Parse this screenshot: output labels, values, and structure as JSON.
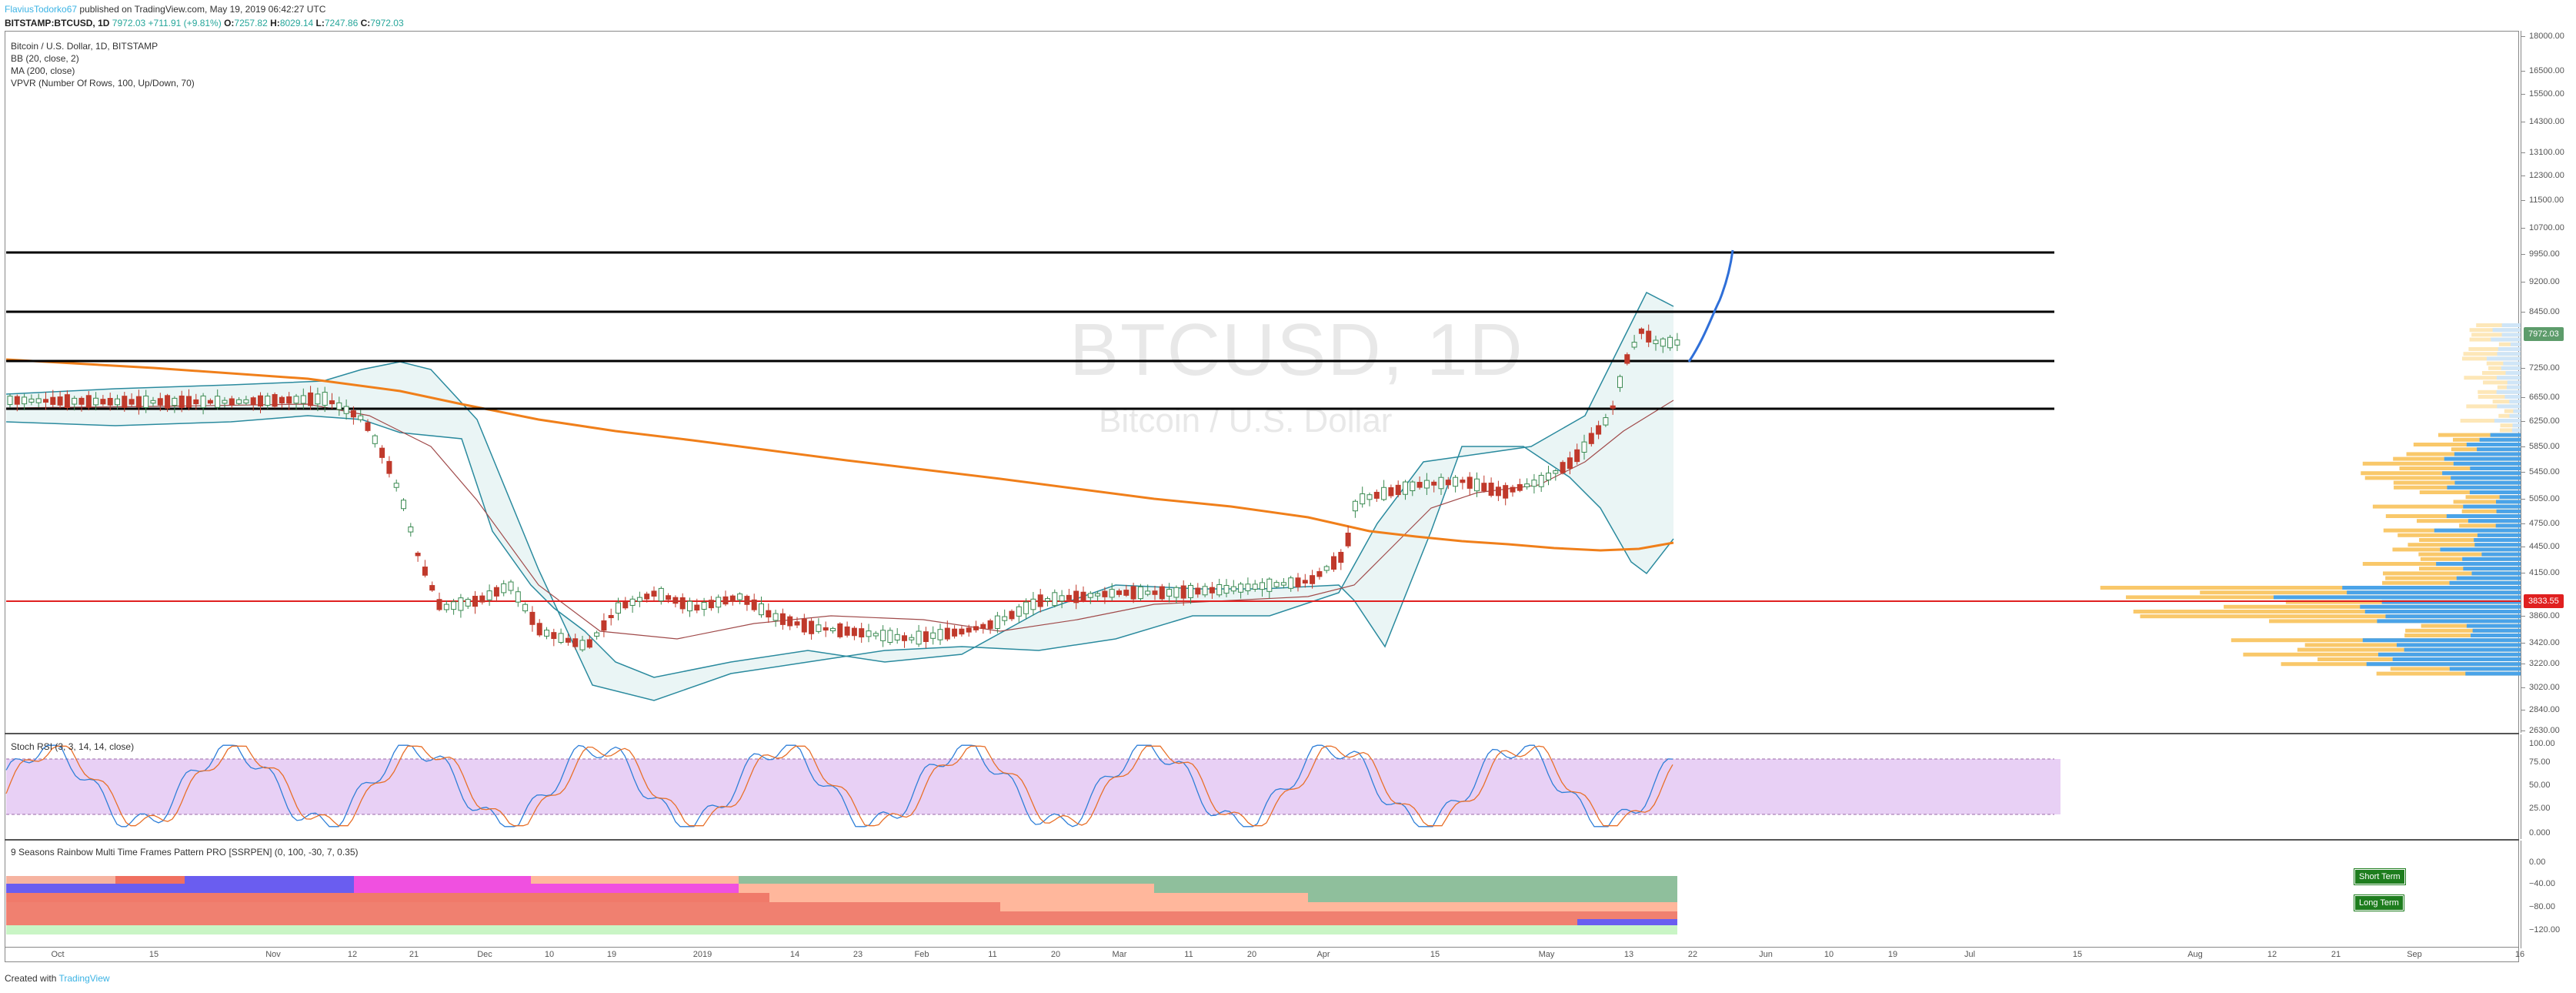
{
  "header": {
    "author": "FlaviusTodorko67",
    "published": "published on TradingView.com, May 19, 2019 06:42:27 UTC",
    "symbol": "BITSTAMP:BTCUSD, 1D",
    "last": "7972.03",
    "change": "+711.91 (+9.81%)",
    "o_label": "O:",
    "o": "7257.82",
    "h_label": "H:",
    "h": "8029.14",
    "l_label": "L:",
    "l": "7247.86",
    "c_label": "C:",
    "c": "7972.03"
  },
  "main_legend": {
    "title": "Bitcoin / U.S. Dollar, 1D, BITSTAMP",
    "bb": "BB (20, close, 2)",
    "ma": "MA (200, close)",
    "vpvr": "VPVR (Number Of Rows, 100, Up/Down, 70)"
  },
  "watermark": {
    "symbol": "BTCUSD, 1D",
    "name": "Bitcoin / U.S. Dollar"
  },
  "price_axis": {
    "labels": [
      "18000.00",
      "16500.00",
      "15500.00",
      "14300.00",
      "13100.00",
      "12300.00",
      "11500.00",
      "10700.00",
      "9950.00",
      "9200.00",
      "8450.00",
      "7250.00",
      "6650.00",
      "6250.00",
      "5850.00",
      "5450.00",
      "5050.00",
      "4750.00",
      "4450.00",
      "4150.00",
      "3860.00",
      "3420.00",
      "3220.00",
      "3020.00",
      "2840.00",
      "2630.00"
    ]
  },
  "price_badges": {
    "last": "7972.03",
    "red_level": "3833.55",
    "last_color": "#5d9c6b",
    "red_color": "#e02020"
  },
  "rsi": {
    "legend": "Stoch RSI (3, 3, 14, 14, close)",
    "axis": [
      "100.00",
      "75.00",
      "50.00",
      "25.00",
      "0.000"
    ]
  },
  "rainbow": {
    "legend": "9 Seasons Rainbow Multi Time Frames Pattern PRO [SSRPEN] (0, 100, -30, 7, 0.35)",
    "axis": [
      "0.00",
      "−40.00",
      "−80.00",
      "−120.00"
    ],
    "short_term": "Short Term",
    "long_term": "Long Term"
  },
  "time_axis": [
    "Oct",
    "15",
    "Nov",
    "12",
    "21",
    "Dec",
    "10",
    "19",
    "2019",
    "14",
    "23",
    "Feb",
    "11",
    "20",
    "Mar",
    "11",
    "20",
    "Apr",
    "15",
    "May",
    "13",
    "22",
    "Jun",
    "10",
    "19",
    "Jul",
    "15",
    "Aug",
    "12",
    "21",
    "Sep",
    "16"
  ],
  "footer": {
    "created": "Created with",
    "brand": "TradingView"
  },
  "chart_data": {
    "type": "line",
    "title": "Bitcoin / U.S. Dollar, 1D, BITSTAMP",
    "series": [
      {
        "name": "MA (200, close)",
        "color": "#f07f1a"
      },
      {
        "name": "BB (20, close, 2)",
        "color": "#2a8a9e"
      }
    ],
    "horizontal_levels": [
      9950,
      8450,
      7250,
      6650,
      3833.55
    ],
    "y_range": [
      2630,
      18000
    ]
  }
}
